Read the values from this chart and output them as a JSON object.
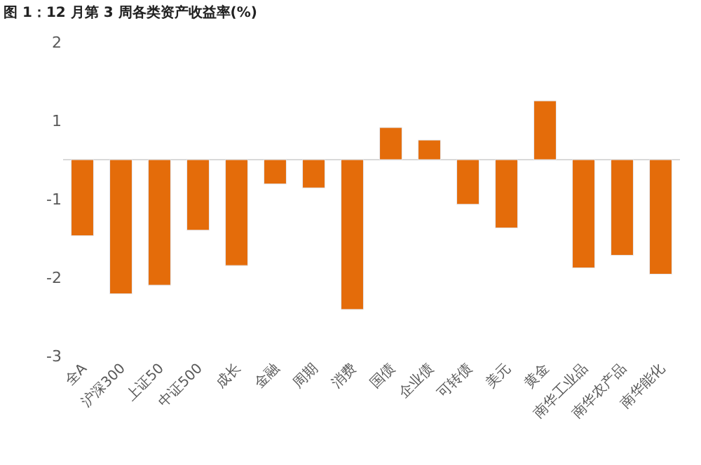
{
  "chart_data": {
    "type": "bar",
    "title": "图 1：12 月第 3 周各类资产收益率(%)",
    "categories": [
      "全A",
      "沪深300",
      "上证50",
      "中证500",
      "成长",
      "金融",
      "周期",
      "消费",
      "国债",
      "企业债",
      "可转债",
      "美元",
      "黄金",
      "南华工业品",
      "南华农产品",
      "南华能化"
    ],
    "values": [
      -0.97,
      -1.71,
      -1.6,
      -0.9,
      -1.35,
      -0.31,
      -0.36,
      -1.91,
      0.41,
      0.25,
      -0.57,
      -0.87,
      0.75,
      -1.38,
      -1.22,
      -1.46
    ],
    "color": "#e46c0a",
    "ylim": [
      -2.5,
      1.5
    ],
    "yticks": [
      {
        "value": 1.5,
        "label": "2"
      },
      {
        "value": 0.5,
        "label": "1"
      },
      {
        "value": -0.5,
        "label": "-1"
      },
      {
        "value": -1.5,
        "label": "-2"
      },
      {
        "value": -2.5,
        "label": "-3"
      }
    ]
  }
}
